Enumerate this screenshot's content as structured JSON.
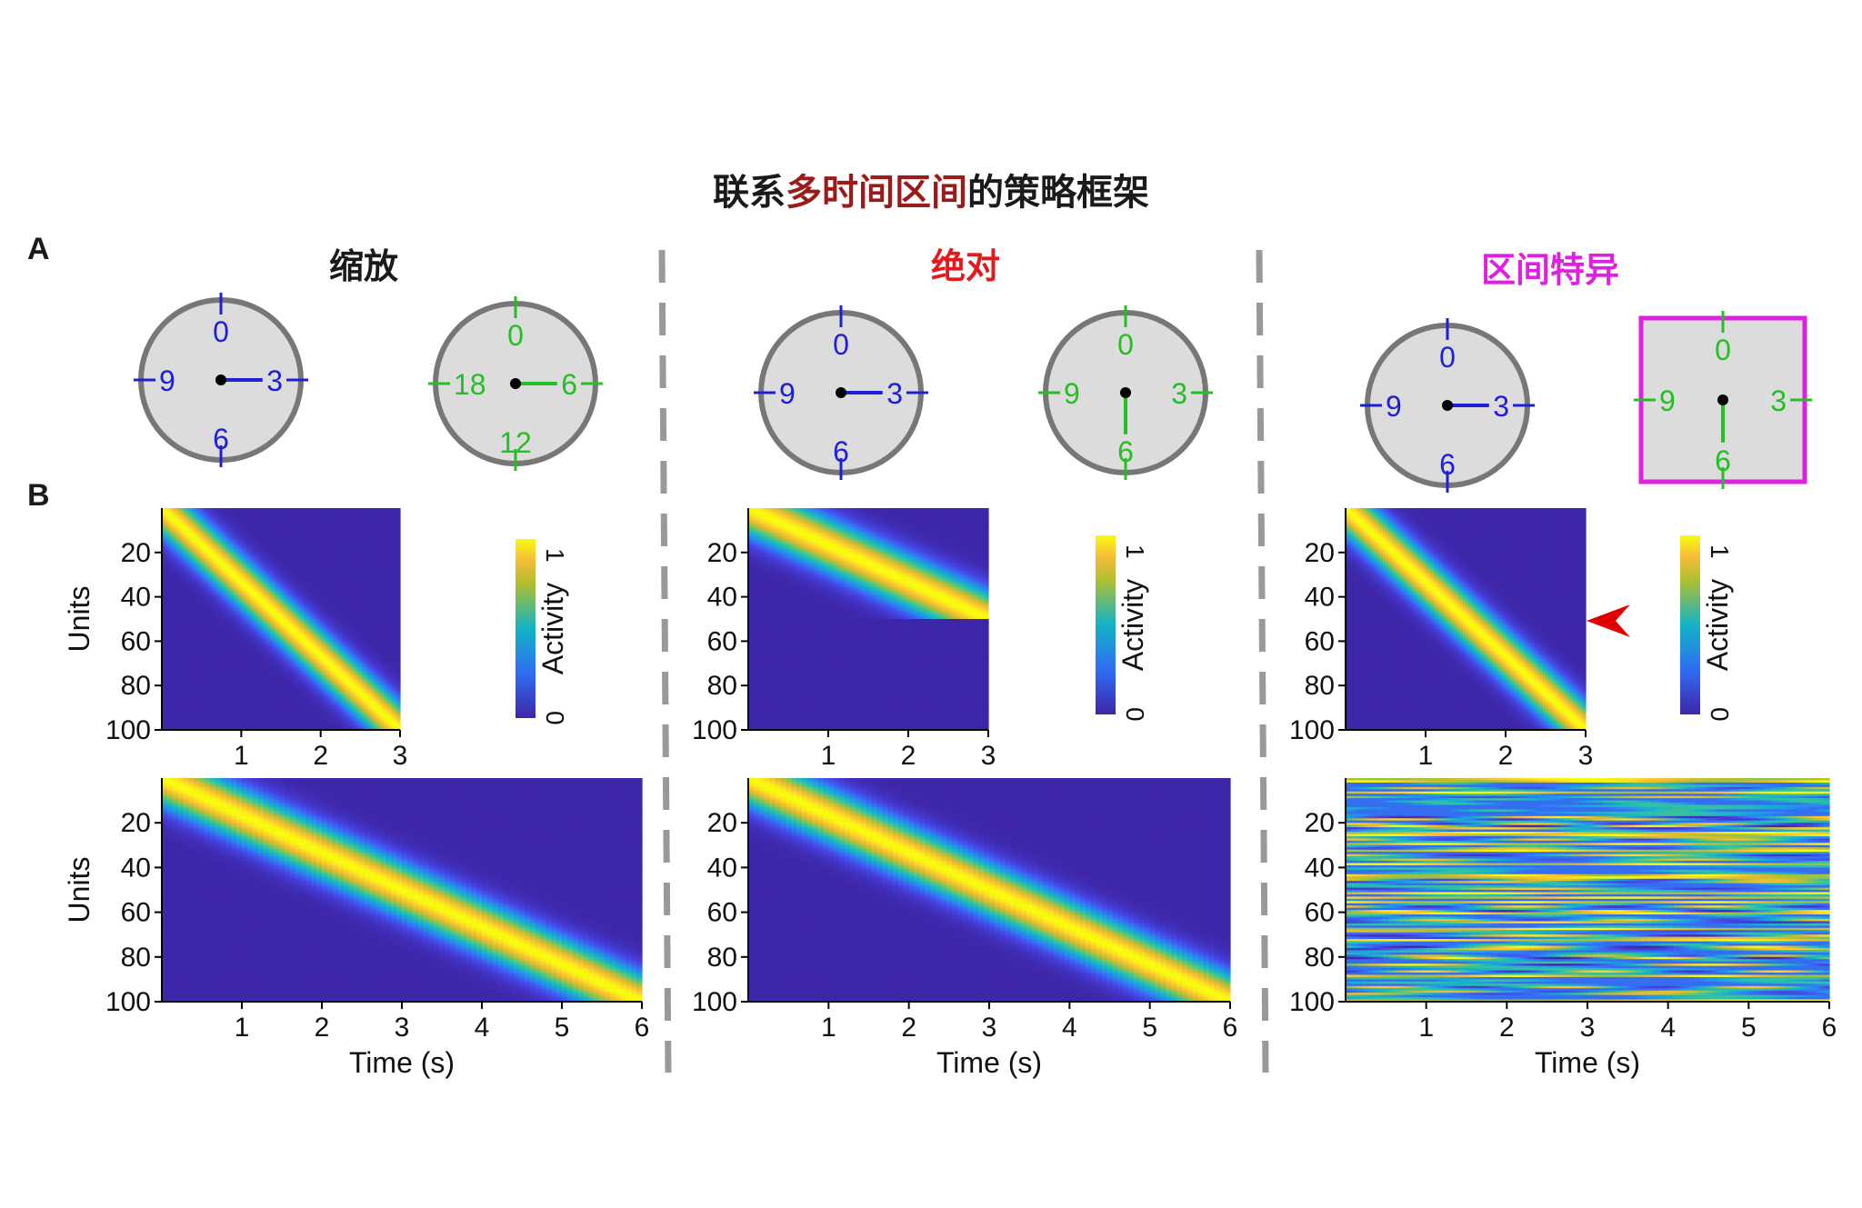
{
  "title": {
    "part1": "联系",
    "part2": "多时间区间",
    "part3": "的策略框架"
  },
  "panel_labels": {
    "a": "A",
    "b": "B"
  },
  "colors": {
    "title_black": "#1a1a1a",
    "title_red": "#9b1b1b",
    "scaling": "#1a1a1a",
    "absolute": "#e31a1c",
    "specific": "#e020e0",
    "clock_blue": "#1f1fd8",
    "clock_green": "#22c022",
    "clock_face": "#dcdcdc",
    "clock_rim": "#777777",
    "divider": "#999999",
    "arrow": "#e00000"
  },
  "strategies": [
    {
      "name": "缩放",
      "clocks": [
        {
          "shape": "circle",
          "color": "blue",
          "labels": [
            "0",
            "3",
            "6",
            "9"
          ],
          "hand": "3"
        },
        {
          "shape": "circle",
          "color": "green",
          "labels": [
            "0",
            "6",
            "12",
            "18"
          ],
          "hand": "6"
        }
      ],
      "small_heatmap": {
        "pattern": "scaled",
        "x_ticks": [
          "1",
          "2",
          "3"
        ],
        "y_ticks": [
          "20",
          "40",
          "60",
          "80",
          "100"
        ],
        "ylabel": "Units"
      },
      "big_heatmap": {
        "pattern": "scaled",
        "x_ticks": [
          "1",
          "2",
          "3",
          "4",
          "5",
          "6"
        ],
        "y_ticks": [
          "20",
          "40",
          "60",
          "80",
          "100"
        ],
        "ylabel": "Units",
        "xlabel": "Time (s)"
      },
      "colorbar": {
        "label": "Activity",
        "min": "0",
        "max": "1"
      }
    },
    {
      "name": "绝对",
      "clocks": [
        {
          "shape": "circle",
          "color": "blue",
          "labels": [
            "0",
            "3",
            "6",
            "9"
          ],
          "hand": "3"
        },
        {
          "shape": "circle",
          "color": "green",
          "labels": [
            "0",
            "3",
            "6",
            "9"
          ],
          "hand": "6"
        }
      ],
      "small_heatmap": {
        "pattern": "absolute",
        "x_ticks": [
          "1",
          "2",
          "3"
        ],
        "y_ticks": [
          "20",
          "40",
          "60",
          "80",
          "100"
        ]
      },
      "big_heatmap": {
        "pattern": "absolute",
        "x_ticks": [
          "1",
          "2",
          "3",
          "4",
          "5",
          "6"
        ],
        "y_ticks": [
          "20",
          "40",
          "60",
          "80",
          "100"
        ],
        "xlabel": "Time (s)"
      },
      "colorbar": {
        "label": "Activity",
        "min": "0",
        "max": "1"
      }
    },
    {
      "name": "区间特异",
      "clocks": [
        {
          "shape": "circle",
          "color": "blue",
          "labels": [
            "0",
            "3",
            "6",
            "9"
          ],
          "hand": "3"
        },
        {
          "shape": "square",
          "color": "green",
          "labels": [
            "0",
            "3",
            "6",
            "9"
          ],
          "hand": "6"
        }
      ],
      "small_heatmap": {
        "pattern": "scaled",
        "x_ticks": [
          "1",
          "2",
          "3"
        ],
        "y_ticks": [
          "20",
          "40",
          "60",
          "80",
          "100"
        ],
        "marker": "red-arrowhead"
      },
      "big_heatmap": {
        "pattern": "random",
        "x_ticks": [
          "1",
          "2",
          "3",
          "4",
          "5",
          "6"
        ],
        "y_ticks": [
          "20",
          "40",
          "60",
          "80",
          "100"
        ],
        "xlabel": "Time (s)"
      },
      "colorbar": {
        "label": "Activity",
        "min": "0",
        "max": "1"
      }
    }
  ]
}
